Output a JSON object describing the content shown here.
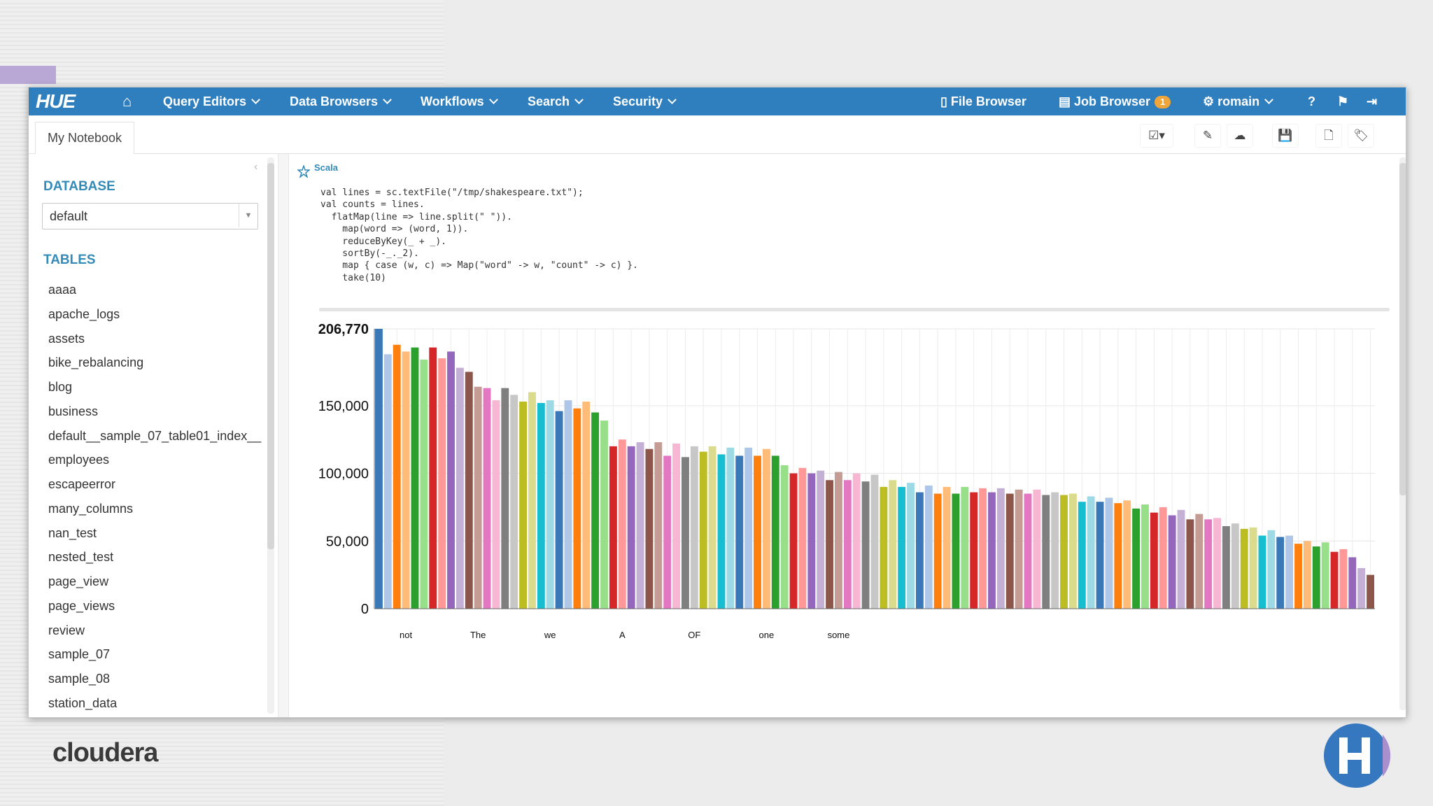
{
  "brand": {
    "logo": "HUE",
    "footer": "cloudera"
  },
  "nav": {
    "items": [
      {
        "label": "Query Editors"
      },
      {
        "label": "Data Browsers"
      },
      {
        "label": "Workflows"
      },
      {
        "label": "Search"
      },
      {
        "label": "Security"
      }
    ],
    "file_browser": "File Browser",
    "job_browser": "Job Browser",
    "job_count": "1",
    "user": "romain"
  },
  "tab": {
    "label": "My Notebook"
  },
  "sidebar": {
    "database_title": "DATABASE",
    "database_value": "default",
    "tables_title": "TABLES",
    "tables": [
      "aaaa",
      "apache_logs",
      "assets",
      "bike_rebalancing",
      "blog",
      "business",
      "default__sample_07_table01_index__",
      "employees",
      "escapeerror",
      "many_columns",
      "nan_test",
      "nested_test",
      "page_view",
      "page_views",
      "review",
      "sample_07",
      "sample_08",
      "station_data"
    ]
  },
  "snippet": {
    "language": "Scala",
    "code": [
      "val lines = sc.textFile(\"/tmp/shakespeare.txt\");",
      "val counts = lines.",
      "  flatMap(line => line.split(\" \")).",
      "    map(word => (word, 1)).",
      "    reduceByKey(_ + _).",
      "    sortBy(-_._2).",
      "    map { case (w, c) => Map(\"word\" -> w, \"count\" -> c) }.",
      "    take(10)"
    ]
  },
  "colors": {
    "nav_bg": "#2f7fbf",
    "accent_text": "#338bb8",
    "bar_palette": [
      "#3a78b8",
      "#aec7e8",
      "#ff7f0e",
      "#ffbb78",
      "#2ca02c",
      "#98df8a",
      "#d62728",
      "#ff9896",
      "#9467bd",
      "#c5b0d5",
      "#8c564b",
      "#c49c94",
      "#e377c2",
      "#f7b6d2",
      "#7f7f7f",
      "#c7c7c7",
      "#bcbd22",
      "#dbdb8d",
      "#17becf",
      "#9edae5"
    ]
  },
  "chart_data": {
    "type": "bar",
    "ylim": [
      0,
      206770
    ],
    "y_ticks": [
      "0",
      "50,000",
      "100,000",
      "150,000",
      "206,770"
    ],
    "y_tick_values": [
      0,
      50000,
      100000,
      150000,
      206770
    ],
    "x_labels": [
      "not",
      "The",
      "we",
      "A",
      "OF",
      "one",
      "some"
    ],
    "x_label_indices": [
      3,
      11,
      19,
      27,
      35,
      43,
      51
    ],
    "values": [
      206770,
      188000,
      195000,
      190000,
      193000,
      184000,
      193000,
      185000,
      190000,
      178000,
      175000,
      164000,
      163000,
      154000,
      163000,
      158000,
      153000,
      160000,
      152000,
      154000,
      146000,
      154000,
      148000,
      153000,
      145000,
      139000,
      120000,
      125000,
      120000,
      123000,
      118000,
      123000,
      113000,
      122000,
      112000,
      120000,
      116000,
      120000,
      114000,
      119000,
      113000,
      119000,
      113000,
      118000,
      113000,
      106000,
      100000,
      104000,
      100000,
      102000,
      95000,
      101000,
      95000,
      100000,
      94000,
      99000,
      90000,
      95000,
      90000,
      93000,
      86000,
      91000,
      85000,
      90000,
      85000,
      90000,
      86000,
      89000,
      86000,
      89000,
      85000,
      88000,
      85000,
      88000,
      84000,
      86000,
      84000,
      85000,
      79000,
      83000,
      79000,
      82000,
      78000,
      80000,
      74000,
      77000,
      71000,
      75000,
      69000,
      73000,
      66000,
      70000,
      66000,
      67000,
      61000,
      63000,
      59000,
      60000,
      54000,
      58000,
      53000,
      54000,
      48000,
      50000,
      46000,
      49000,
      42000,
      44000,
      38000,
      30000,
      25000
    ]
  }
}
